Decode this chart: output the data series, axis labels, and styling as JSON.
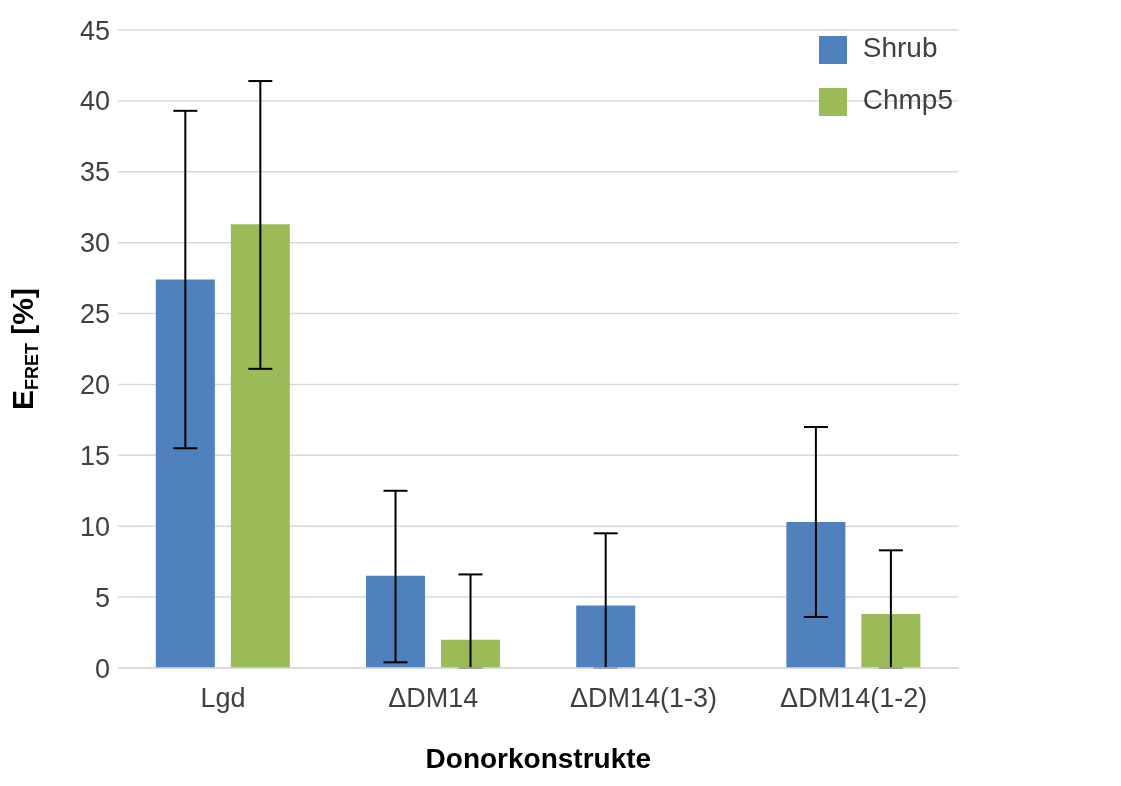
{
  "chart_data": {
    "type": "bar",
    "xlabel": "Donorkonstrukte",
    "ylabel": "E$_{FRET}$ [%]",
    "categories": [
      "Lgd",
      "ΔDM14",
      "ΔDM14(1-3)",
      "ΔDM14(1-2)"
    ],
    "series": [
      {
        "name": "Shrub",
        "color": "#4f81bd",
        "values": [
          27.4,
          6.5,
          4.4,
          10.3
        ],
        "errors": [
          [
            15.5,
            39.3
          ],
          [
            0.4,
            12.5
          ],
          [
            0,
            9.5
          ],
          [
            3.6,
            17.0
          ]
        ]
      },
      {
        "name": "Chmp5",
        "color": "#9bbb59",
        "values": [
          31.3,
          2.0,
          null,
          3.8
        ],
        "errors": [
          [
            21.1,
            41.4
          ],
          [
            0,
            6.6
          ],
          null,
          [
            0,
            8.3
          ]
        ]
      }
    ],
    "ylim": [
      0,
      45
    ],
    "yticks": [
      0,
      5,
      10,
      15,
      20,
      25,
      30,
      35,
      40,
      45
    ],
    "grid": "y",
    "legend": "top right"
  }
}
